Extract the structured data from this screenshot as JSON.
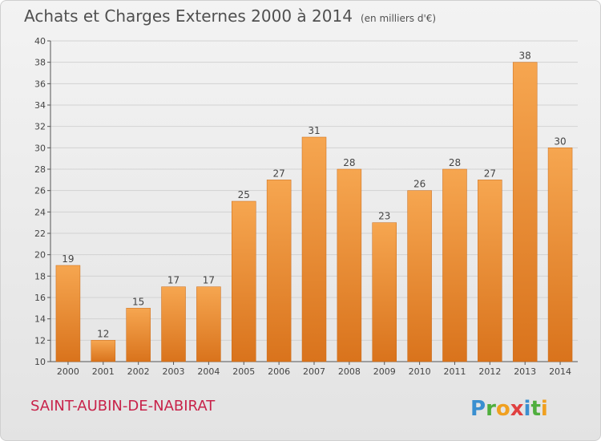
{
  "title": "Achats et Charges Externes 2000 à 2014",
  "unit_note": "(en milliers d'€)",
  "commune": "SAINT-AUBIN-DE-NABIRAT",
  "logo_text": "Proxiti",
  "colors": {
    "bar_light": "#f6a650",
    "bar_dark": "#d9731c",
    "title": "#505050",
    "commune": "#c8234a",
    "grid": "#d2d2d2"
  },
  "chart_data": {
    "type": "bar",
    "categories": [
      "2000",
      "2001",
      "2002",
      "2003",
      "2004",
      "2005",
      "2006",
      "2007",
      "2008",
      "2009",
      "2010",
      "2011",
      "2012",
      "2013",
      "2014"
    ],
    "values": [
      19,
      12,
      15,
      17,
      17,
      25,
      27,
      31,
      28,
      23,
      26,
      28,
      27,
      38,
      30
    ],
    "ylim": [
      10,
      40
    ],
    "yticks": [
      10,
      12,
      14,
      16,
      18,
      20,
      22,
      24,
      26,
      28,
      30,
      32,
      34,
      36,
      38,
      40
    ],
    "grid": true,
    "xlabel": "",
    "ylabel": ""
  }
}
